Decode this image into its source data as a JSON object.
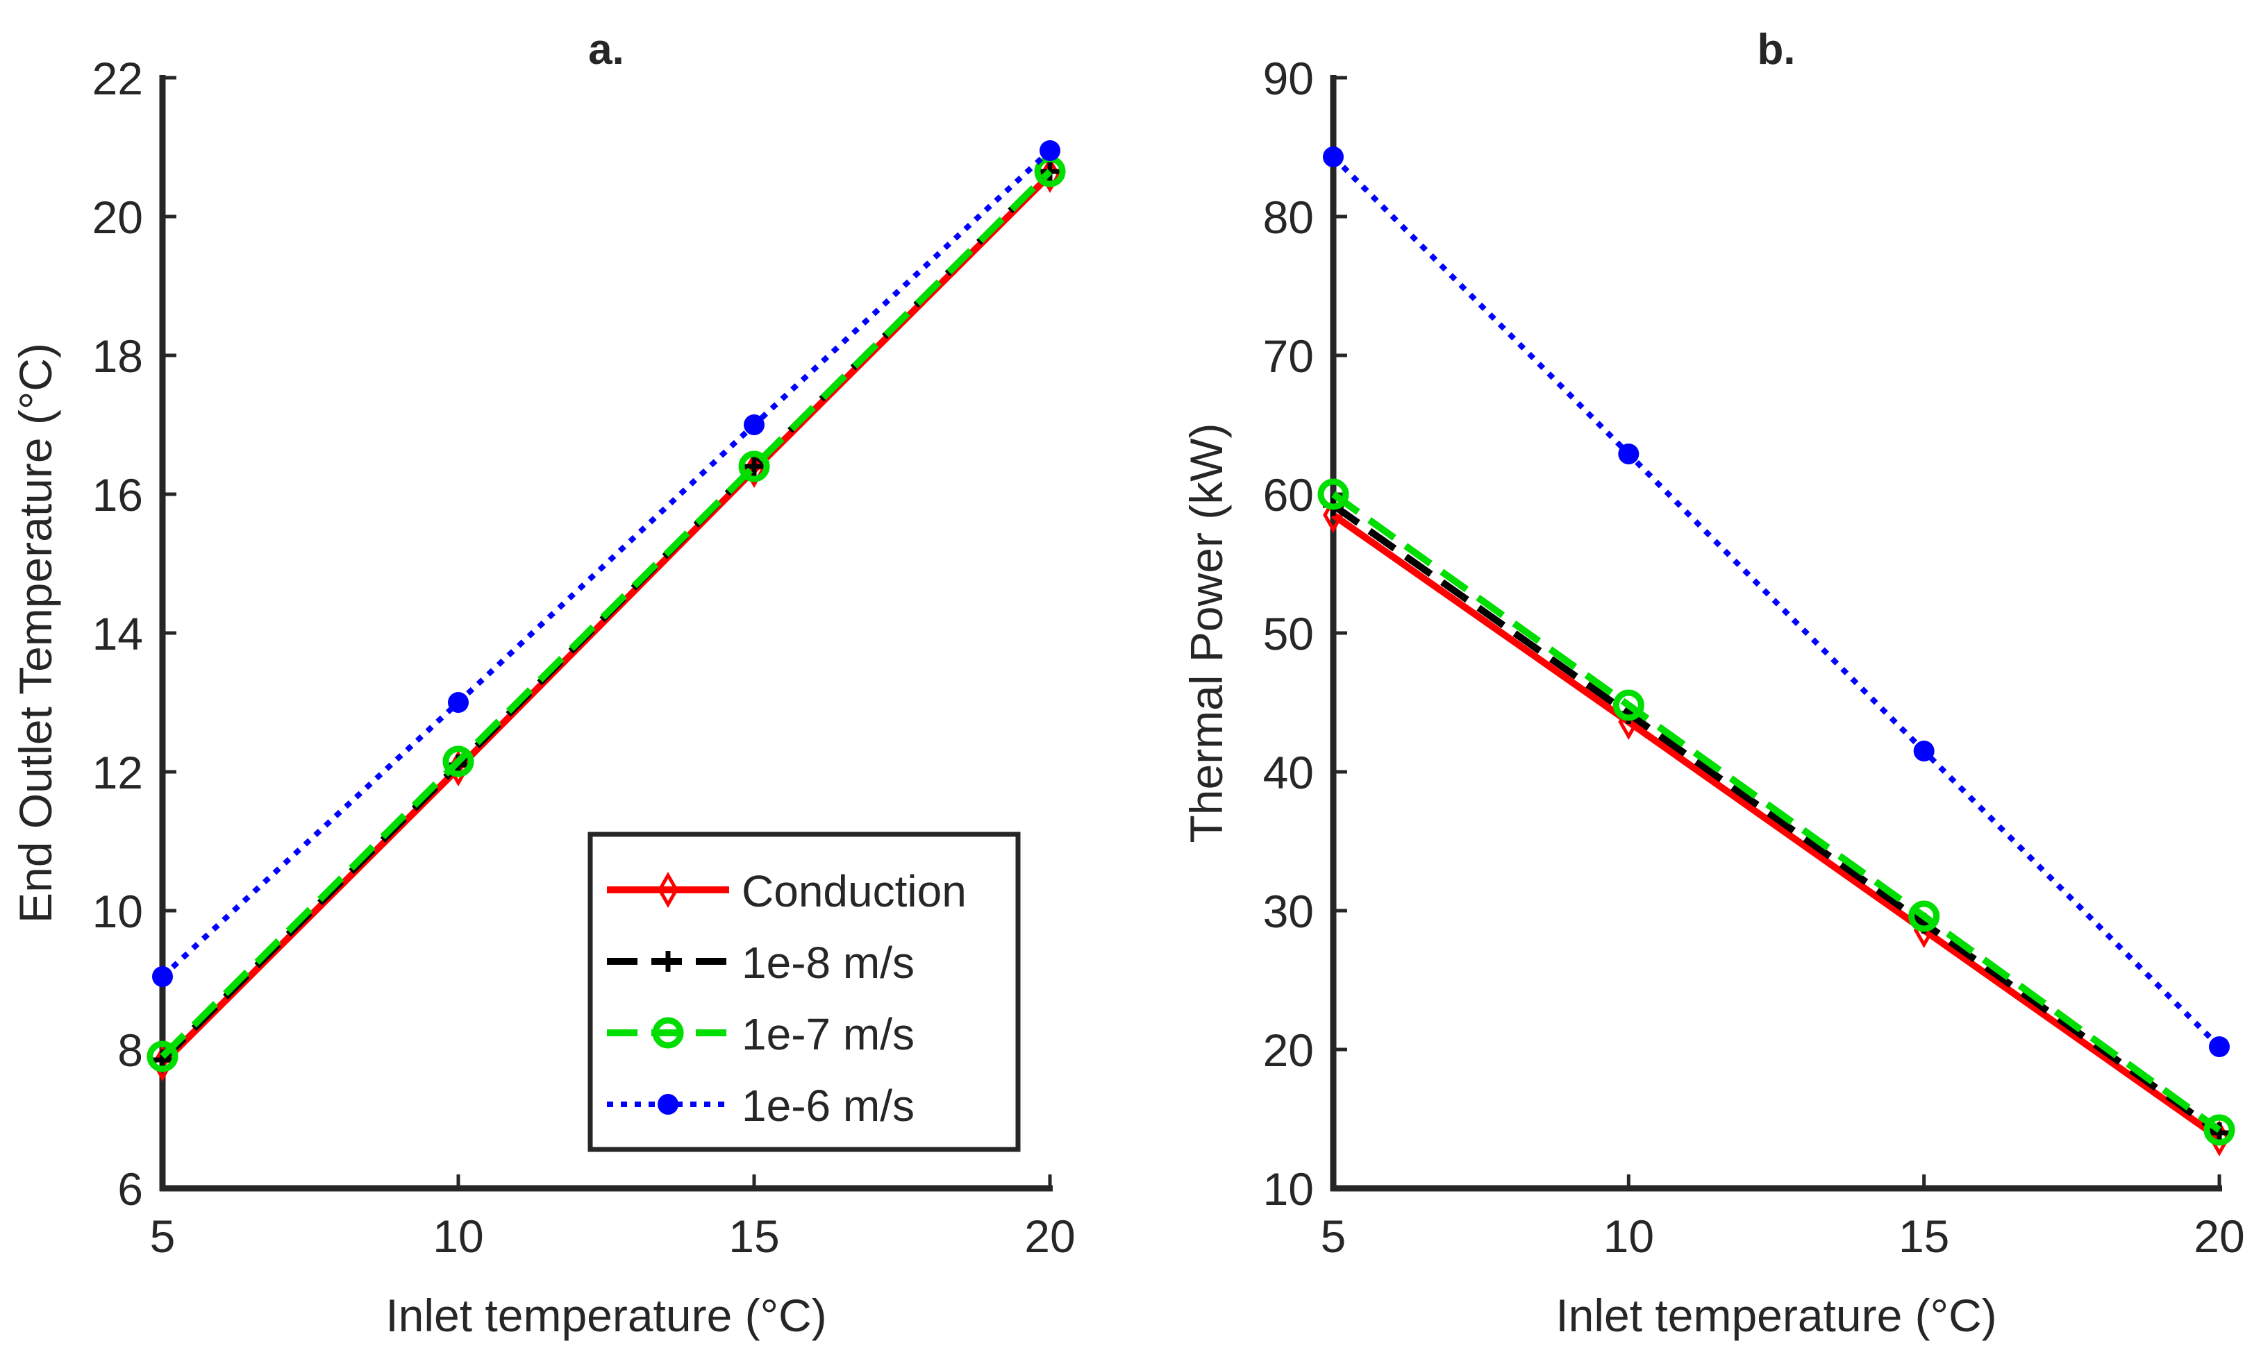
{
  "chart_data": [
    {
      "type": "line",
      "title": "a.",
      "xlabel": "Inlet temperature  (°C)",
      "ylabel": "End Outlet Temperature  (°C)",
      "xlim": [
        5,
        20
      ],
      "ylim": [
        6,
        22
      ],
      "xticks": [
        5,
        10,
        15,
        20
      ],
      "yticks": [
        6,
        8,
        10,
        12,
        14,
        16,
        18,
        20,
        22
      ],
      "grid": false,
      "legend": "bottom-right",
      "x": [
        5,
        10,
        15,
        20
      ],
      "series": [
        {
          "name": "Conduction",
          "values": [
            7.8,
            12.05,
            16.35,
            20.6
          ],
          "color": "#ff0000",
          "marker": "diamond",
          "line": "solid"
        },
        {
          "name": "1e-8 m/s",
          "values": [
            7.85,
            12.1,
            16.4,
            20.65
          ],
          "color": "#000000",
          "marker": "plus",
          "line": "dashed"
        },
        {
          "name": "1e-7 m/s",
          "values": [
            7.9,
            12.15,
            16.4,
            20.65
          ],
          "color": "#00dd00",
          "marker": "circle",
          "line": "dashed"
        },
        {
          "name": "1e-6 m/s",
          "values": [
            9.05,
            13.0,
            17.0,
            20.95
          ],
          "color": "#0000ff",
          "marker": "dot",
          "line": "dotted"
        }
      ]
    },
    {
      "type": "line",
      "title": "b.",
      "xlabel": "Inlet temperature  (°C)",
      "ylabel": "Thermal Power  (kW)",
      "xlim": [
        5,
        20
      ],
      "ylim": [
        10,
        90
      ],
      "xticks": [
        5,
        10,
        15,
        20
      ],
      "yticks": [
        10,
        20,
        30,
        40,
        50,
        60,
        70,
        80,
        90
      ],
      "grid": false,
      "x": [
        5,
        10,
        15,
        20
      ],
      "series": [
        {
          "name": "Conduction",
          "values": [
            58.5,
            43.6,
            28.6,
            13.6
          ],
          "color": "#ff0000",
          "marker": "diamond",
          "line": "solid"
        },
        {
          "name": "1e-8 m/s",
          "values": [
            59.2,
            44.2,
            29.1,
            14.0
          ],
          "color": "#000000",
          "marker": "plus",
          "line": "dashed"
        },
        {
          "name": "1e-7 m/s",
          "values": [
            60.0,
            44.8,
            29.6,
            14.2
          ],
          "color": "#00dd00",
          "marker": "circle",
          "line": "dashed"
        },
        {
          "name": "1e-6 m/s",
          "values": [
            84.3,
            62.9,
            41.5,
            20.2
          ],
          "color": "#0000ff",
          "marker": "dot",
          "line": "dotted"
        }
      ]
    }
  ]
}
